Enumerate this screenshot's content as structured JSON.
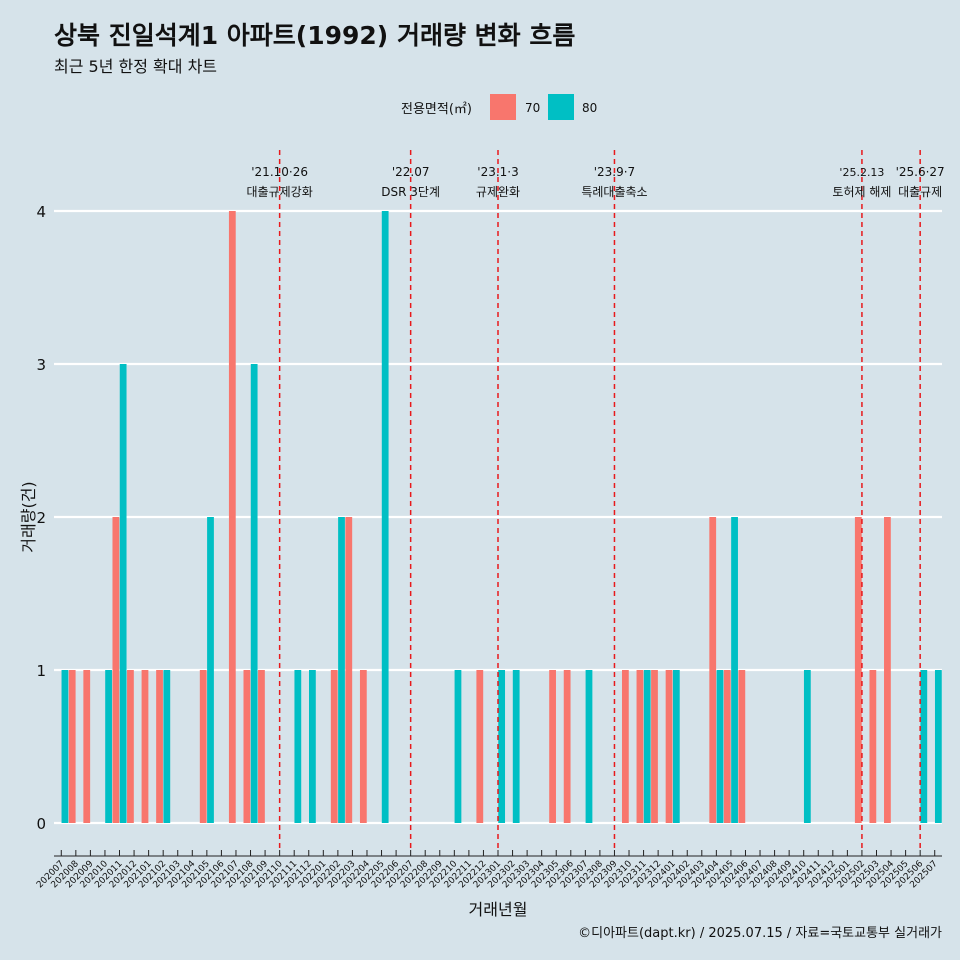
{
  "title": "상북 진일석계1 아파트(1992) 거래량 변화 흐름",
  "subtitle": "최근 5년 한정 확대 차트",
  "caption": "©디아파트(dapt.kr) / 2025.07.15 / 자료=국토교통부 실거래가",
  "colors": {
    "background": "#d6e3ea",
    "s70": "#f8766d",
    "s80": "#00bfc4",
    "event_line": "#e8191c",
    "grid": "#ffffff"
  },
  "chart_data": {
    "type": "bar",
    "xlabel": "거래년월",
    "ylabel": "거래량(건)",
    "ylim": [
      0,
      4
    ],
    "yticks": [
      0,
      1,
      2,
      3,
      4
    ],
    "grid": true,
    "legend": {
      "title": "전용면적(㎡)",
      "position": "top"
    },
    "categories": [
      "202007",
      "202008",
      "202009",
      "202010",
      "202011",
      "202012",
      "202101",
      "202102",
      "202103",
      "202104",
      "202105",
      "202106",
      "202107",
      "202108",
      "202109",
      "202110",
      "202111",
      "202112",
      "202201",
      "202202",
      "202203",
      "202204",
      "202205",
      "202206",
      "202207",
      "202208",
      "202209",
      "202210",
      "202211",
      "202212",
      "202301",
      "202302",
      "202303",
      "202304",
      "202305",
      "202306",
      "202307",
      "202308",
      "202309",
      "202310",
      "202311",
      "202312",
      "202401",
      "202402",
      "202403",
      "202404",
      "202405",
      "202406",
      "202407",
      "202408",
      "202409",
      "202410",
      "202411",
      "202412",
      "202501",
      "202502",
      "202503",
      "202504",
      "202505",
      "202506",
      "202507"
    ],
    "series": [
      {
        "name": "70",
        "color": "#f8766d",
        "values": [
          0,
          1,
          1,
          0,
          2,
          1,
          1,
          1,
          0,
          0,
          1,
          0,
          4,
          1,
          1,
          0,
          0,
          0,
          0,
          1,
          2,
          1,
          0,
          0,
          0,
          0,
          0,
          0,
          0,
          1,
          0,
          0,
          0,
          0,
          1,
          1,
          0,
          0,
          0,
          1,
          1,
          1,
          1,
          0,
          0,
          2,
          1,
          1,
          0,
          0,
          0,
          0,
          0,
          0,
          0,
          2,
          1,
          2,
          0,
          0,
          0
        ]
      },
      {
        "name": "80",
        "color": "#00bfc4",
        "values": [
          1,
          0,
          0,
          1,
          3,
          0,
          0,
          1,
          0,
          0,
          2,
          0,
          0,
          3,
          0,
          0,
          1,
          1,
          0,
          2,
          0,
          0,
          4,
          0,
          0,
          0,
          0,
          1,
          0,
          0,
          1,
          1,
          0,
          0,
          0,
          0,
          1,
          0,
          0,
          0,
          1,
          0,
          1,
          0,
          0,
          1,
          2,
          0,
          0,
          0,
          0,
          1,
          0,
          0,
          0,
          0,
          0,
          0,
          0,
          1,
          1
        ]
      }
    ],
    "events": [
      {
        "at": "202110",
        "date": "'21.10·26",
        "label": "대출규제강화"
      },
      {
        "at": "202207",
        "date": "'22.07",
        "label": "DSR 3단계"
      },
      {
        "at": "202301",
        "date": "'23.1·3",
        "label": "규제완화"
      },
      {
        "at": "202309",
        "date": "'23.9·7",
        "label": "특례대출축소"
      },
      {
        "at": "202502",
        "date": "'25.2.13",
        "label": "토허제 해제"
      },
      {
        "at": "202506",
        "date": "'25.6·27",
        "label": "대출규제"
      }
    ]
  }
}
